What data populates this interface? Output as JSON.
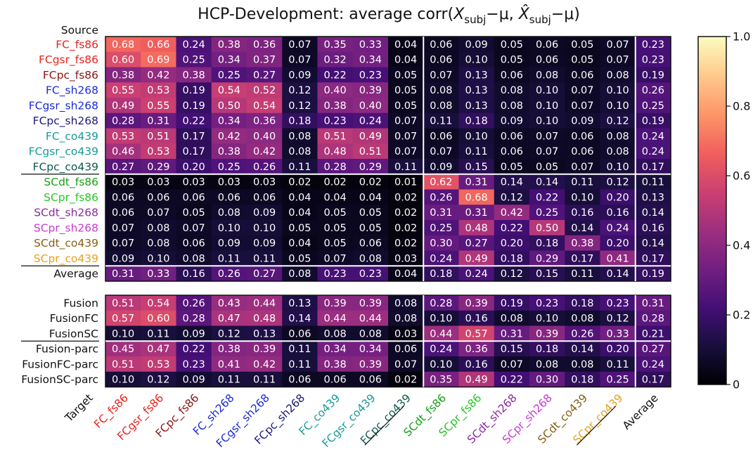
{
  "chart_data": {
    "type": "heatmap",
    "title": {
      "prefix": "HCP-Development: average corr(",
      "x_symbol": "X",
      "x_subscript": "subj",
      "minus_mu": "−μ",
      "separator": ", ",
      "xhat_symbol": "X̂",
      "xhat_subscript": "subj",
      "suffix": "−μ)"
    },
    "row_axis_label": "Source",
    "col_axis_label": "Target",
    "columns": [
      "FC_fs86",
      "FCgsr_fs86",
      "FCpc_fs86",
      "FC_sh268",
      "FCgsr_sh268",
      "FCpc_sh268",
      "FC_co439",
      "FCgsr_co439",
      "FCpc_co439",
      "SCdt_fs86",
      "SCpr_fs86",
      "SCdt_sh268",
      "SCpr_sh268",
      "SCdt_co439",
      "SCpr_co439",
      "Average"
    ],
    "column_colors": [
      "#e8231c",
      "#e8231c",
      "#8b1414",
      "#1c2bd6",
      "#1c2bd6",
      "#1a1a7a",
      "#1a9a9a",
      "#1a9a9a",
      "#0f5a4f",
      "#1a9e1a",
      "#28c428",
      "#8a2a9e",
      "#c63ad6",
      "#8a6010",
      "#e6a020",
      "#111111"
    ],
    "top_block": {
      "rows": [
        "FC_fs86",
        "FCgsr_fs86",
        "FCpc_fs86",
        "FC_sh268",
        "FCgsr_sh268",
        "FCpc_sh268",
        "FC_co439",
        "FCgsr_co439",
        "FCpc_co439",
        "SCdt_fs86",
        "SCpr_fs86",
        "SCdt_sh268",
        "SCpr_sh268",
        "SCdt_co439",
        "SCpr_co439",
        "Average"
      ],
      "row_colors": [
        "#e8231c",
        "#e8231c",
        "#8b1414",
        "#1c2bd6",
        "#1c2bd6",
        "#1a1a7a",
        "#1a9a9a",
        "#1a9a9a",
        "#0f5a4f",
        "#1a9e1a",
        "#28c428",
        "#8a2a9e",
        "#c63ad6",
        "#8a6010",
        "#e6a020",
        "#111111"
      ],
      "values": [
        [
          0.68,
          0.66,
          0.24,
          0.38,
          0.36,
          0.07,
          0.35,
          0.33,
          0.04,
          0.06,
          0.09,
          0.05,
          0.06,
          0.05,
          0.07,
          0.23
        ],
        [
          0.6,
          0.69,
          0.25,
          0.34,
          0.37,
          0.07,
          0.32,
          0.34,
          0.04,
          0.06,
          0.1,
          0.05,
          0.06,
          0.05,
          0.07,
          0.23
        ],
        [
          0.38,
          0.42,
          0.38,
          0.25,
          0.27,
          0.09,
          0.22,
          0.23,
          0.05,
          0.07,
          0.13,
          0.06,
          0.08,
          0.06,
          0.08,
          0.19
        ],
        [
          0.55,
          0.53,
          0.19,
          0.54,
          0.52,
          0.12,
          0.4,
          0.39,
          0.05,
          0.08,
          0.13,
          0.08,
          0.1,
          0.07,
          0.1,
          0.26
        ],
        [
          0.49,
          0.55,
          0.19,
          0.5,
          0.54,
          0.12,
          0.38,
          0.4,
          0.05,
          0.08,
          0.13,
          0.08,
          0.1,
          0.07,
          0.1,
          0.25
        ],
        [
          0.28,
          0.31,
          0.22,
          0.34,
          0.36,
          0.18,
          0.23,
          0.24,
          0.07,
          0.11,
          0.18,
          0.09,
          0.1,
          0.09,
          0.12,
          0.19
        ],
        [
          0.53,
          0.51,
          0.17,
          0.42,
          0.4,
          0.08,
          0.51,
          0.49,
          0.07,
          0.06,
          0.1,
          0.06,
          0.07,
          0.06,
          0.08,
          0.24
        ],
        [
          0.46,
          0.53,
          0.17,
          0.38,
          0.42,
          0.08,
          0.48,
          0.51,
          0.07,
          0.07,
          0.11,
          0.06,
          0.07,
          0.06,
          0.08,
          0.24
        ],
        [
          0.27,
          0.29,
          0.2,
          0.25,
          0.26,
          0.11,
          0.28,
          0.29,
          0.11,
          0.09,
          0.15,
          0.05,
          0.05,
          0.07,
          0.1,
          0.17
        ],
        [
          0.03,
          0.03,
          0.03,
          0.03,
          0.03,
          0.02,
          0.02,
          0.02,
          0.01,
          0.62,
          0.31,
          0.14,
          0.14,
          0.11,
          0.12,
          0.11
        ],
        [
          0.06,
          0.06,
          0.06,
          0.06,
          0.06,
          0.04,
          0.04,
          0.04,
          0.02,
          0.26,
          0.68,
          0.12,
          0.22,
          0.1,
          0.2,
          0.13
        ],
        [
          0.06,
          0.07,
          0.05,
          0.08,
          0.09,
          0.04,
          0.05,
          0.05,
          0.02,
          0.31,
          0.31,
          0.42,
          0.25,
          0.16,
          0.16,
          0.14
        ],
        [
          0.07,
          0.08,
          0.07,
          0.1,
          0.1,
          0.05,
          0.05,
          0.05,
          0.02,
          0.25,
          0.48,
          0.22,
          0.5,
          0.14,
          0.24,
          0.16
        ],
        [
          0.07,
          0.08,
          0.06,
          0.09,
          0.09,
          0.04,
          0.05,
          0.06,
          0.02,
          0.3,
          0.27,
          0.2,
          0.18,
          0.38,
          0.2,
          0.14
        ],
        [
          0.09,
          0.1,
          0.08,
          0.11,
          0.11,
          0.05,
          0.07,
          0.08,
          0.03,
          0.24,
          0.49,
          0.18,
          0.29,
          0.17,
          0.41,
          0.17
        ],
        [
          0.31,
          0.33,
          0.16,
          0.26,
          0.27,
          0.08,
          0.23,
          0.23,
          0.04,
          0.18,
          0.24,
          0.12,
          0.15,
          0.11,
          0.14,
          0.19
        ]
      ]
    },
    "bottom_block": {
      "rows": [
        "Fusion",
        "FusionFC",
        "FusionSC",
        "Fusion-parc",
        "FusionFC-parc",
        "FusionSC-parc"
      ],
      "values": [
        [
          0.51,
          0.54,
          0.26,
          0.43,
          0.44,
          0.13,
          0.39,
          0.39,
          0.08,
          0.28,
          0.39,
          0.19,
          0.23,
          0.18,
          0.23,
          0.31
        ],
        [
          0.57,
          0.6,
          0.28,
          0.47,
          0.48,
          0.14,
          0.44,
          0.44,
          0.08,
          0.1,
          0.16,
          0.08,
          0.1,
          0.08,
          0.12,
          0.28
        ],
        [
          0.1,
          0.11,
          0.09,
          0.12,
          0.13,
          0.06,
          0.08,
          0.08,
          0.03,
          0.44,
          0.57,
          0.31,
          0.39,
          0.26,
          0.33,
          0.21
        ],
        [
          0.45,
          0.47,
          0.22,
          0.38,
          0.39,
          0.11,
          0.34,
          0.34,
          0.06,
          0.24,
          0.36,
          0.15,
          0.18,
          0.14,
          0.2,
          0.27
        ],
        [
          0.51,
          0.53,
          0.23,
          0.41,
          0.42,
          0.11,
          0.38,
          0.39,
          0.07,
          0.1,
          0.16,
          0.07,
          0.08,
          0.08,
          0.11,
          0.24
        ],
        [
          0.1,
          0.12,
          0.09,
          0.11,
          0.11,
          0.06,
          0.06,
          0.06,
          0.02,
          0.35,
          0.49,
          0.22,
          0.3,
          0.18,
          0.25,
          0.17
        ]
      ]
    },
    "colorbar": {
      "range": [
        0,
        1.0
      ],
      "ticks": [
        0,
        0.2,
        0.4,
        0.6,
        0.8,
        1.0
      ],
      "tick_labels": [
        "0",
        "0.2",
        "0.4",
        "0.6",
        "0.8",
        "1.0"
      ],
      "colormap": "magma",
      "colormap_stops": [
        "#000004",
        "#180f3d",
        "#440f76",
        "#721f81",
        "#9e2f7f",
        "#cd4071",
        "#f1605d",
        "#fd9668",
        "#feca8d",
        "#fcfdbf"
      ]
    }
  }
}
